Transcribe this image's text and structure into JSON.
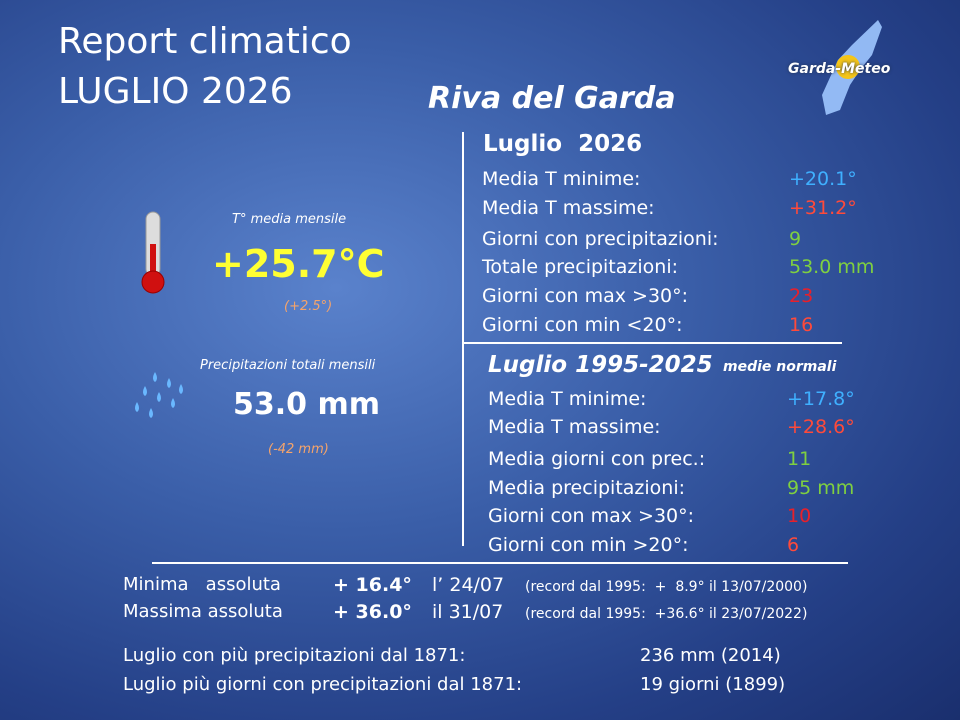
{
  "header": {
    "title_line1": "Report climatico",
    "title_line2": "LUGLIO 2026",
    "location": "Riva del Garda",
    "logo": "Garda-Meteo"
  },
  "summary": {
    "temperature": {
      "label": "T° media mensile",
      "value": "+25.7°C",
      "anomaly": "(+2.5°)"
    },
    "precipitation": {
      "label": "Precipitazioni totali mensili",
      "value": "53.0 mm",
      "anomaly": "(-42 mm)"
    }
  },
  "current": {
    "heading": "Luglio  2026",
    "rows": [
      [
        "Media T minime:",
        "+20.1°"
      ],
      [
        "Media T massime:",
        "+31.2°"
      ],
      [
        "Giorni con precipitazioni:",
        "9"
      ],
      [
        "Totale precipitazioni:",
        "53.0 mm"
      ],
      [
        "Giorni con max >30°:",
        "23"
      ],
      [
        "Giorni con min <20°:",
        "16"
      ]
    ]
  },
  "normals": {
    "heading": "Luglio 1995-2025",
    "subheading": "medie normali",
    "rows": [
      [
        "Media T minime:",
        "+17.8°"
      ],
      [
        "Media T massime:",
        "+28.6°"
      ],
      [
        "Media giorni con prec.:",
        "11"
      ],
      [
        "Media precipitazioni:",
        "95 mm"
      ],
      [
        "Giorni con max >30°:",
        "10"
      ],
      [
        "Giorni con min >20°:",
        "6"
      ]
    ]
  },
  "records": {
    "rows": [
      [
        "Minima   assoluta",
        "+ 16.4°",
        "l’ 24/07",
        "(record dal 1995:  +  8.9° il 13/07/2000)"
      ],
      [
        "Massima assoluta",
        "+ 36.0°",
        "il 31/07",
        "(record dal 1995:  +36.6° il 23/07/2022)"
      ]
    ]
  },
  "extremes": {
    "rows": [
      [
        "Luglio con più precipitazioni dal 1871:",
        "236 mm (2014)"
      ],
      [
        "Luglio più giorni con precipitazioni dal 1871:",
        "19 giorni (1899)"
      ]
    ]
  }
}
